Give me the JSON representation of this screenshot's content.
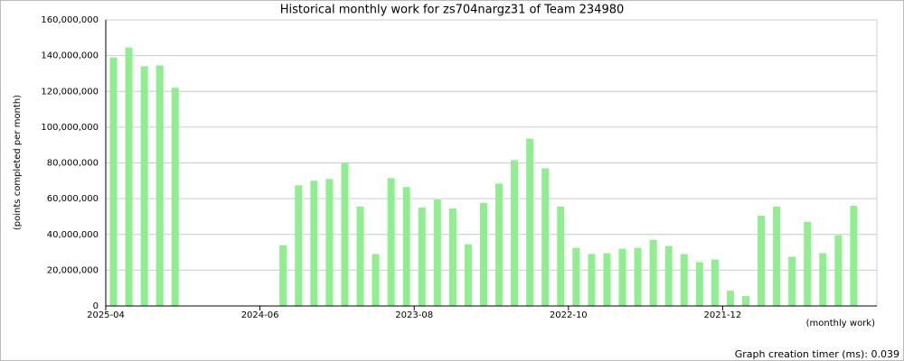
{
  "chart_data": {
    "type": "bar",
    "title": "Historical monthly work for zs704nargz31 of Team 234980",
    "y_label": "(points completed per month)",
    "x_label": "(monthly work)",
    "footer": "Graph creation timer (ms): 0.039",
    "color": "#90ee90",
    "grid": true,
    "categories": [
      "2025-04",
      null,
      null,
      null,
      null,
      null,
      null,
      null,
      null,
      null,
      "2024-06",
      null,
      null,
      null,
      null,
      null,
      null,
      null,
      null,
      null,
      "2023-08",
      null,
      null,
      null,
      null,
      null,
      null,
      null,
      null,
      null,
      "2022-10",
      null,
      null,
      null,
      null,
      null,
      null,
      null,
      null,
      null,
      "2021-12",
      null,
      null,
      null,
      null,
      null,
      null,
      null,
      null,
      null
    ],
    "values": [
      139000000,
      144500000,
      134000000,
      134500000,
      122000000,
      null,
      null,
      null,
      null,
      null,
      null,
      34000000,
      67500000,
      70000000,
      71000000,
      80000000,
      55500000,
      29000000,
      71500000,
      66500000,
      55000000,
      59500000,
      54500000,
      34500000,
      57500000,
      68500000,
      81500000,
      93500000,
      77000000,
      55500000,
      32500000,
      29000000,
      29500000,
      32000000,
      32500000,
      37000000,
      33500000,
      29000000,
      24500000,
      26000000,
      8500000,
      5500000,
      50500000,
      55500000,
      27500000,
      47000000,
      29500000,
      39500000,
      56000000,
      null
    ],
    "ylim": [
      0,
      160000000
    ],
    "yticks": [
      {
        "value": 0,
        "label": "0"
      },
      {
        "value": 20000000,
        "label": "20,000,000"
      },
      {
        "value": 40000000,
        "label": "40,000,000"
      },
      {
        "value": 60000000,
        "label": "60,000,000"
      },
      {
        "value": 80000000,
        "label": "80,000,000"
      },
      {
        "value": 100000000,
        "label": "100,000,000"
      },
      {
        "value": 120000000,
        "label": "120,000,000"
      },
      {
        "value": 140000000,
        "label": "140,000,000"
      },
      {
        "value": 160000000,
        "label": "160,000,000"
      }
    ]
  }
}
